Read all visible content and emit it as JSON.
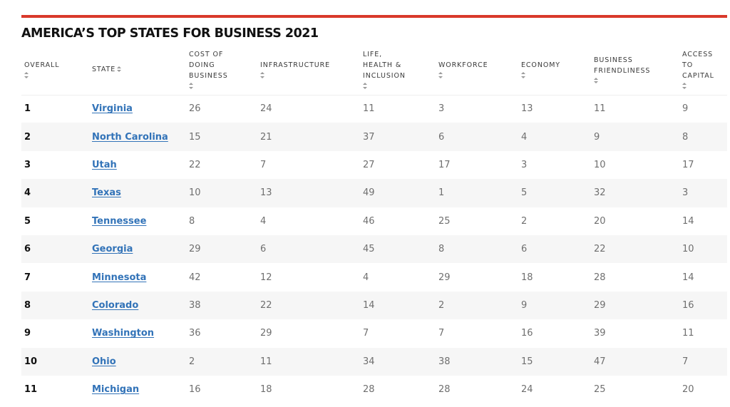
{
  "accent_color": "#d9392b",
  "link_color": "#3273b8",
  "title": "AMERICA’S TOP STATES FOR BUSINESS 2021",
  "columns": [
    {
      "lines": [
        "OVERALL"
      ],
      "sort_icon": "sort-arrows-icon"
    },
    {
      "lines": [
        "STATE"
      ],
      "sort_icon": "sort-arrows-icon"
    },
    {
      "lines": [
        "COST OF",
        "DOING",
        "BUSINESS"
      ],
      "sort_icon": "sort-arrows-icon"
    },
    {
      "lines": [
        "INFRASTRUCTURE"
      ],
      "sort_icon": "sort-arrows-icon"
    },
    {
      "lines": [
        "LIFE,",
        "HEALTH &",
        "INCLUSION"
      ],
      "sort_icon": "sort-arrows-icon"
    },
    {
      "lines": [
        "WORKFORCE"
      ],
      "sort_icon": "sort-arrows-icon"
    },
    {
      "lines": [
        "ECONOMY"
      ],
      "sort_icon": "sort-arrows-icon"
    },
    {
      "lines": [
        "BUSINESS",
        "FRIENDLINESS"
      ],
      "sort_icon": "sort-arrows-icon"
    },
    {
      "lines": [
        "ACCESS",
        "TO",
        "CAPITAL"
      ],
      "sort_icon": "sort-arrows-icon"
    }
  ],
  "rows": [
    {
      "overall": "1",
      "state": "Virginia",
      "cost": "26",
      "infrastructure": "24",
      "life": "11",
      "workforce": "3",
      "economy": "13",
      "business": "11",
      "capital": "9"
    },
    {
      "overall": "2",
      "state": "North Carolina",
      "cost": "15",
      "infrastructure": "21",
      "life": "37",
      "workforce": "6",
      "economy": "4",
      "business": "9",
      "capital": "8"
    },
    {
      "overall": "3",
      "state": "Utah",
      "cost": "22",
      "infrastructure": "7",
      "life": "27",
      "workforce": "17",
      "economy": "3",
      "business": "10",
      "capital": "17"
    },
    {
      "overall": "4",
      "state": "Texas",
      "cost": "10",
      "infrastructure": "13",
      "life": "49",
      "workforce": "1",
      "economy": "5",
      "business": "32",
      "capital": "3"
    },
    {
      "overall": "5",
      "state": "Tennessee",
      "cost": "8",
      "infrastructure": "4",
      "life": "46",
      "workforce": "25",
      "economy": "2",
      "business": "20",
      "capital": "14"
    },
    {
      "overall": "6",
      "state": "Georgia",
      "cost": "29",
      "infrastructure": "6",
      "life": "45",
      "workforce": "8",
      "economy": "6",
      "business": "22",
      "capital": "10"
    },
    {
      "overall": "7",
      "state": "Minnesota",
      "cost": "42",
      "infrastructure": "12",
      "life": "4",
      "workforce": "29",
      "economy": "18",
      "business": "28",
      "capital": "14"
    },
    {
      "overall": "8",
      "state": "Colorado",
      "cost": "38",
      "infrastructure": "22",
      "life": "14",
      "workforce": "2",
      "economy": "9",
      "business": "29",
      "capital": "16"
    },
    {
      "overall": "9",
      "state": "Washington",
      "cost": "36",
      "infrastructure": "29",
      "life": "7",
      "workforce": "7",
      "economy": "16",
      "business": "39",
      "capital": "11"
    },
    {
      "overall": "10",
      "state": "Ohio",
      "cost": "2",
      "infrastructure": "11",
      "life": "34",
      "workforce": "38",
      "economy": "15",
      "business": "47",
      "capital": "7"
    },
    {
      "overall": "11",
      "state": "Michigan",
      "cost": "16",
      "infrastructure": "18",
      "life": "28",
      "workforce": "28",
      "economy": "24",
      "business": "25",
      "capital": "20"
    }
  ]
}
